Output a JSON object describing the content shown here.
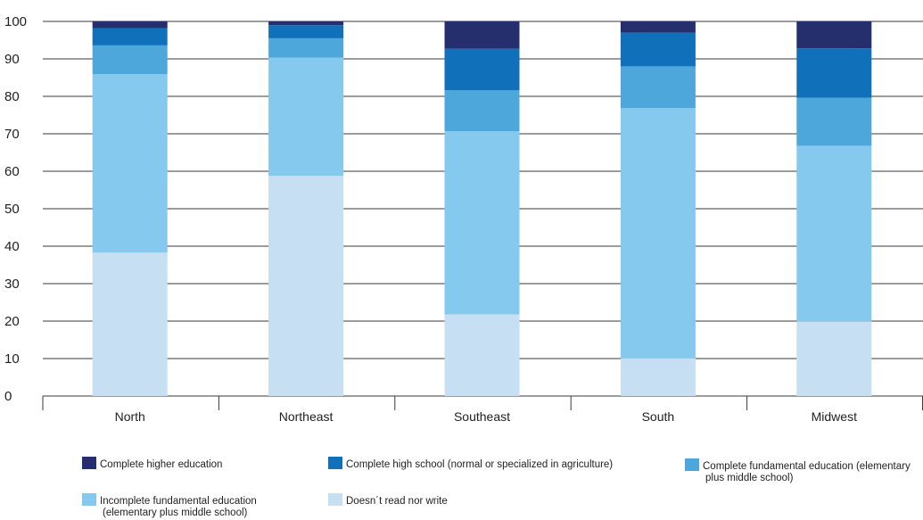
{
  "chart_data": {
    "type": "bar",
    "stacked": true,
    "title": "",
    "xlabel": "",
    "ylabel": "",
    "ylim": [
      0,
      100
    ],
    "yticks": [
      0,
      10,
      20,
      30,
      40,
      50,
      60,
      70,
      80,
      90,
      100
    ],
    "grid": true,
    "legend_position": "bottom",
    "categories": [
      "North",
      "Northeast",
      "Southeast",
      "South",
      "Midwest"
    ],
    "series": [
      {
        "name": "Doesn´t read nor write",
        "color": "#c6dff2",
        "values": [
          38.3,
          58.8,
          21.8,
          10.1,
          19.9
        ]
      },
      {
        "name": "Incomplete fundamental education (elementary plus middle school)",
        "color": "#85c9ee",
        "values": [
          47.6,
          31.5,
          48.9,
          66.8,
          46.9
        ]
      },
      {
        "name": "Complete fundamental education (elementary plus middle school)",
        "color": "#4ea7db",
        "values": [
          7.7,
          5.2,
          10.9,
          11.1,
          12.8
        ]
      },
      {
        "name": "Complete high school (normal or specialized in agriculture)",
        "color": "#1070ba",
        "values": [
          4.6,
          3.5,
          11.1,
          9.0,
          13.2
        ]
      },
      {
        "name": "Complete higher education",
        "color": "#252f6e",
        "values": [
          1.8,
          1.0,
          7.3,
          3.0,
          7.2
        ]
      }
    ],
    "legend_layout": [
      {
        "series_index": 4,
        "lines": [
          "Complete higher education"
        ]
      },
      {
        "series_index": 3,
        "lines": [
          "Complete high school (normal or specialized in agriculture)"
        ]
      },
      {
        "series_index": 2,
        "lines": [
          "Complete fundamental education (elementary",
          "plus middle school)"
        ]
      },
      {
        "series_index": 1,
        "lines": [
          "Incomplete fundamental education",
          "(elementary plus middle school)"
        ]
      },
      {
        "series_index": 0,
        "lines": [
          "Doesn´t read nor write"
        ]
      }
    ],
    "grid_color": "#3a3a3a",
    "axis_color": "#3a3a3a"
  }
}
